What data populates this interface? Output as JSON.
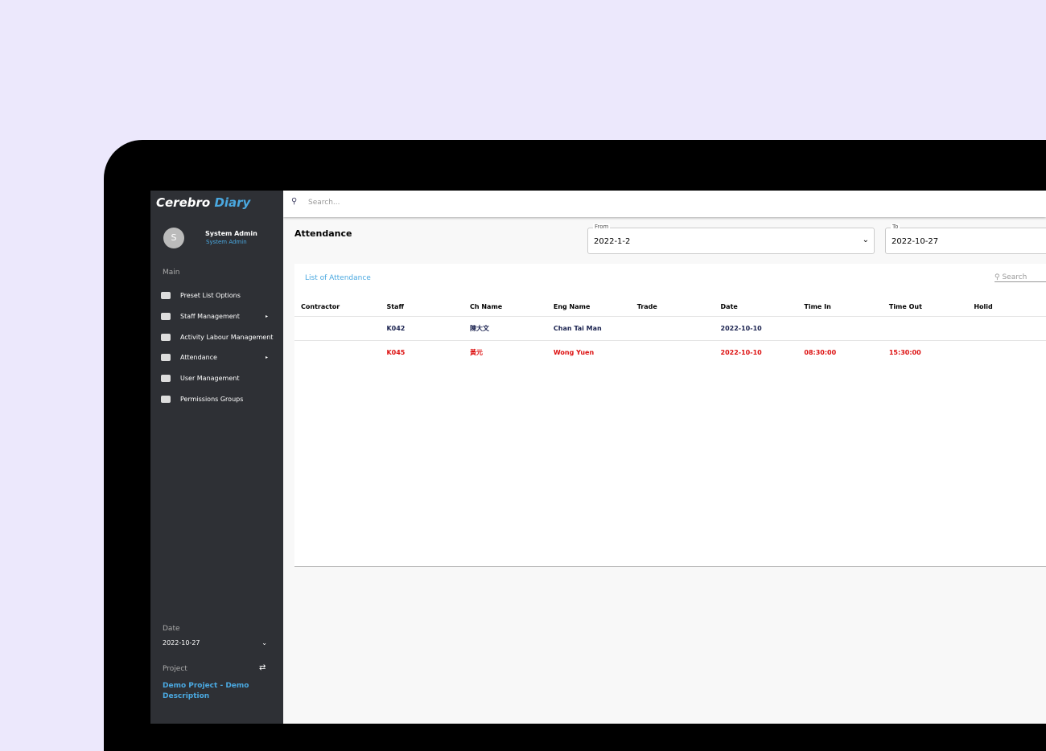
{
  "app": {
    "logo": {
      "part1": "Cerebro",
      "part2": "Diary"
    },
    "search_placeholder": "Search...",
    "user": {
      "initial": "S",
      "name": "System Admin",
      "role": "System Admin"
    },
    "menu_heading": "Main",
    "menu": [
      "Preset List Options",
      "Staff Management",
      "Activity Labour Management",
      "Attendance",
      "User Management",
      "Permissions Groups"
    ],
    "date_label": "Date",
    "date_value": "2022-10-27",
    "project_label": "Project",
    "project_value": "Demo Project - Demo Description",
    "page_title": "Attendance",
    "from_label": "From",
    "from_value": "2022-1-2",
    "to_label": "To",
    "to_value": "2022-10-27",
    "table": {
      "title": "List of Attendance",
      "search_placeholder": "Search",
      "columns": [
        "Contractor",
        "Staff",
        "Ch Name",
        "Eng Name",
        "Trade",
        "Date",
        "Time In",
        "Time Out",
        "Holid"
      ],
      "rows": [
        [
          "",
          "K042",
          "陳大文",
          "Chan Tai Man",
          "",
          "2022-10-10",
          "",
          "",
          ""
        ],
        [
          "",
          "K045",
          "黃元",
          "Wong Yuen",
          "",
          "2022-10-10",
          "08:30:00",
          "15:30:00",
          ""
        ]
      ]
    }
  }
}
